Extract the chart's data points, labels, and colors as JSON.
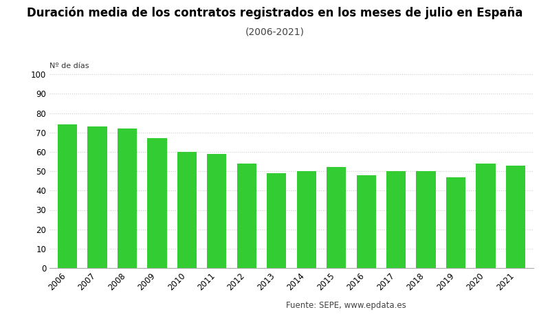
{
  "title": "Duración media de los contratos registrados en los meses de julio en España",
  "subtitle": "(2006-2021)",
  "ylabel": "Nº de días",
  "years": [
    "2006",
    "2007",
    "2008",
    "2009",
    "2010",
    "2011",
    "2012",
    "2013",
    "2014",
    "2015",
    "2016",
    "2017",
    "2018",
    "2019",
    "2020",
    "2021"
  ],
  "values": [
    74,
    73,
    72,
    67,
    60,
    59,
    54,
    49,
    50,
    52,
    48,
    50,
    50,
    47,
    54,
    53
  ],
  "bar_color": "#33cc33",
  "ylim": [
    0,
    100
  ],
  "yticks": [
    0,
    10,
    20,
    30,
    40,
    50,
    60,
    70,
    80,
    90,
    100
  ],
  "legend_label": "Duración media",
  "source_text": "Fuente: SEPE, www.epdata.es",
  "background_color": "#ffffff",
  "grid_color": "#cccccc",
  "title_fontsize": 12,
  "subtitle_fontsize": 10,
  "ylabel_fontsize": 8,
  "tick_fontsize": 8.5,
  "legend_fontsize": 8.5
}
